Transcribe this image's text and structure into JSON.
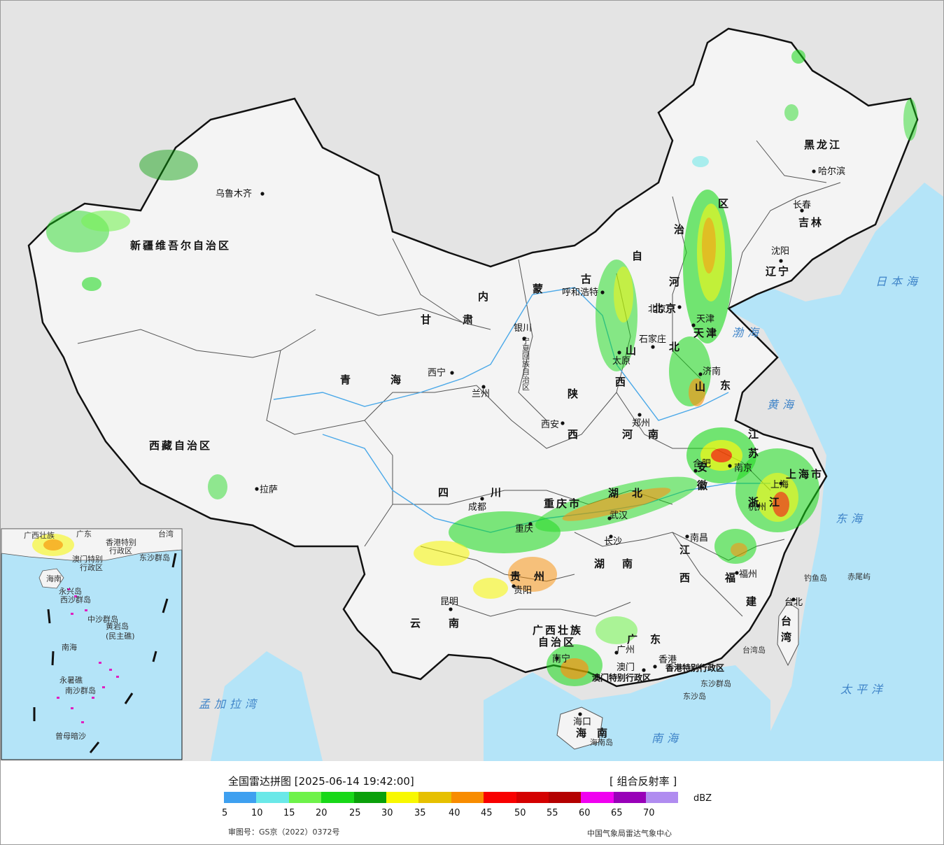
{
  "map": {
    "provinces": [
      {
        "id": "xinjiang",
        "text": "新疆维吾尔自治区"
      },
      {
        "id": "xizang",
        "text": "西藏自治区"
      },
      {
        "id": "qinghai-a",
        "text": "青"
      },
      {
        "id": "qinghai-b",
        "text": "海"
      },
      {
        "id": "gansu-a",
        "text": "甘"
      },
      {
        "id": "gansu-b",
        "text": "肃"
      },
      {
        "id": "neimenggu-a",
        "text": "内"
      },
      {
        "id": "neimenggu-b",
        "text": "蒙"
      },
      {
        "id": "neimenggu-c",
        "text": "古"
      },
      {
        "id": "neimenggu-d",
        "text": "自"
      },
      {
        "id": "neimenggu-e",
        "text": "治"
      },
      {
        "id": "neimenggu-f",
        "text": "区"
      },
      {
        "id": "heilongjiang",
        "text": "黑龙江"
      },
      {
        "id": "jilin",
        "text": "吉林"
      },
      {
        "id": "liaoning",
        "text": "辽宁"
      },
      {
        "id": "hebei-a",
        "text": "河"
      },
      {
        "id": "hebei-b",
        "text": "北"
      },
      {
        "id": "shanxi-a",
        "text": "山"
      },
      {
        "id": "shanxi-b",
        "text": "西"
      },
      {
        "id": "shandong-a",
        "text": "山"
      },
      {
        "id": "shandong-b",
        "text": "东"
      },
      {
        "id": "henan-a",
        "text": "河"
      },
      {
        "id": "henan-b",
        "text": "南"
      },
      {
        "id": "shaanxi-a",
        "text": "陕"
      },
      {
        "id": "shaanxi-b",
        "text": "西"
      },
      {
        "id": "sichuan-a",
        "text": "四"
      },
      {
        "id": "sichuan-b",
        "text": "川"
      },
      {
        "id": "chongqing",
        "text": "重庆市"
      },
      {
        "id": "hubei-a",
        "text": "湖"
      },
      {
        "id": "hubei-b",
        "text": "北"
      },
      {
        "id": "anhui-a",
        "text": "安"
      },
      {
        "id": "anhui-b",
        "text": "徽"
      },
      {
        "id": "jiangsu-a",
        "text": "江"
      },
      {
        "id": "jiangsu-b",
        "text": "苏"
      },
      {
        "id": "shanghai",
        "text": "上海市"
      },
      {
        "id": "zhejiang-a",
        "text": "浙"
      },
      {
        "id": "zhejiang-b",
        "text": "江"
      },
      {
        "id": "guizhou-a",
        "text": "贵"
      },
      {
        "id": "guizhou-b",
        "text": "州"
      },
      {
        "id": "hunan-a",
        "text": "湖"
      },
      {
        "id": "hunan-b",
        "text": "南"
      },
      {
        "id": "jiangxi-a",
        "text": "江"
      },
      {
        "id": "jiangxi-b",
        "text": "西"
      },
      {
        "id": "fujian-a",
        "text": "福"
      },
      {
        "id": "fujian-b",
        "text": "建"
      },
      {
        "id": "yunnan-a",
        "text": "云"
      },
      {
        "id": "yunnan-b",
        "text": "南"
      },
      {
        "id": "guangxi-a",
        "text": "广西壮族"
      },
      {
        "id": "guangxi-b",
        "text": "自治区"
      },
      {
        "id": "guangdong-a",
        "text": "广"
      },
      {
        "id": "guangdong-b",
        "text": "东"
      },
      {
        "id": "hainan-a",
        "text": "海"
      },
      {
        "id": "hainan-b",
        "text": "南"
      },
      {
        "id": "taiwan-a",
        "text": "台"
      },
      {
        "id": "taiwan-b",
        "text": "湾"
      },
      {
        "id": "ningxia",
        "text": "宁夏回族自治区"
      },
      {
        "id": "tianjin",
        "text": "天津"
      },
      {
        "id": "beijing",
        "text": "北京"
      }
    ],
    "cities": [
      {
        "id": "wulumuqi",
        "text": "乌鲁木齐"
      },
      {
        "id": "lasa",
        "text": "拉萨"
      },
      {
        "id": "xining",
        "text": "西宁"
      },
      {
        "id": "lanzhou",
        "text": "兰州"
      },
      {
        "id": "yinchuan",
        "text": "银川"
      },
      {
        "id": "huhehaote",
        "text": "呼和浩特"
      },
      {
        "id": "haerbin",
        "text": "哈尔滨"
      },
      {
        "id": "changchun",
        "text": "长春"
      },
      {
        "id": "shenyang",
        "text": "沈阳"
      },
      {
        "id": "beijing-city",
        "text": "北京"
      },
      {
        "id": "tianjin-city",
        "text": "天津"
      },
      {
        "id": "shijiazhuang",
        "text": "石家庄"
      },
      {
        "id": "taiyuan",
        "text": "太原"
      },
      {
        "id": "jinan",
        "text": "济南"
      },
      {
        "id": "zhengzhou",
        "text": "郑州"
      },
      {
        "id": "xian",
        "text": "西安"
      },
      {
        "id": "chengdu",
        "text": "成都"
      },
      {
        "id": "chongqing-city",
        "text": "重庆"
      },
      {
        "id": "wuhan",
        "text": "武汉"
      },
      {
        "id": "hefei",
        "text": "合肥"
      },
      {
        "id": "nanjing",
        "text": "南京"
      },
      {
        "id": "shanghai-city",
        "text": "上海"
      },
      {
        "id": "hangzhou",
        "text": "杭州"
      },
      {
        "id": "guiyang",
        "text": "贵阳"
      },
      {
        "id": "changsha",
        "text": "长沙"
      },
      {
        "id": "nanchang",
        "text": "南昌"
      },
      {
        "id": "fuzhou",
        "text": "福州"
      },
      {
        "id": "kunming",
        "text": "昆明"
      },
      {
        "id": "nanning",
        "text": "南宁"
      },
      {
        "id": "guangzhou",
        "text": "广州"
      },
      {
        "id": "xianggang",
        "text": "香港"
      },
      {
        "id": "aomen",
        "text": "澳门"
      },
      {
        "id": "haikou",
        "text": "海口"
      },
      {
        "id": "taibei",
        "text": "台北"
      }
    ],
    "regions": {
      "hk_sar": "香港特别行政区",
      "macau_sar": "澳门特别行政区"
    },
    "islands": {
      "dongsha_qundao": "东沙群岛",
      "dongsha_dao": "东沙岛",
      "diaoyu": "钓鱼岛",
      "chiwei": "赤尾屿",
      "taiwan_dao": "台湾岛",
      "hainan_dao": "海南岛"
    },
    "seas": {
      "japan_sea": "日本海",
      "bohai": "渤海",
      "yellow_sea": "黄海",
      "east_sea": "东海",
      "south_sea": "南海",
      "pacific": "太平洋",
      "bengal": "孟加拉湾"
    },
    "inset": {
      "labels": [
        {
          "id": "inset-guangxi",
          "text": "广西壮族"
        },
        {
          "id": "inset-guangdong",
          "text": "广东"
        },
        {
          "id": "inset-taiwan",
          "text": "台湾"
        },
        {
          "id": "inset-hk",
          "text": "香港特别"
        },
        {
          "id": "inset-hk2",
          "text": "行政区"
        },
        {
          "id": "inset-macau",
          "text": "澳门特别"
        },
        {
          "id": "inset-macau2",
          "text": "行政区"
        },
        {
          "id": "inset-dongsha",
          "text": "东沙群岛"
        },
        {
          "id": "inset-hainan",
          "text": "海南"
        },
        {
          "id": "inset-xisha",
          "text": "西沙群岛"
        },
        {
          "id": "inset-zhongsha",
          "text": "中沙群岛"
        },
        {
          "id": "inset-huangyan",
          "text": "黄岩岛"
        },
        {
          "id": "inset-huangyan2",
          "text": "(民主礁)"
        },
        {
          "id": "inset-nanhai",
          "text": "南海"
        },
        {
          "id": "inset-nansha",
          "text": "南沙群岛"
        },
        {
          "id": "inset-yongshu",
          "text": "永暑礁"
        },
        {
          "id": "inset-zengmu",
          "text": "曾母暗沙"
        },
        {
          "id": "inset-yongxing",
          "text": "永兴岛"
        }
      ]
    }
  },
  "legend": {
    "title": "全国雷达拼图 [2025-06-14 19:42:00]",
    "product": "[ 组合反射率 ]",
    "unit": "dBZ",
    "colors": [
      "#3ea0f0",
      "#6ae8e8",
      "#6ef24a",
      "#18d818",
      "#0aa00a",
      "#f8f800",
      "#e6c000",
      "#f88c00",
      "#f80000",
      "#d40000",
      "#b40000",
      "#f000f0",
      "#9800b8",
      "#b08cf0"
    ],
    "ticks": [
      "5",
      "10",
      "15",
      "20",
      "25",
      "30",
      "35",
      "40",
      "45",
      "50",
      "55",
      "60",
      "65",
      "70"
    ],
    "approval": "审图号：GS京（2022）0372号",
    "issuer": "中国气象局雷达气象中心"
  }
}
